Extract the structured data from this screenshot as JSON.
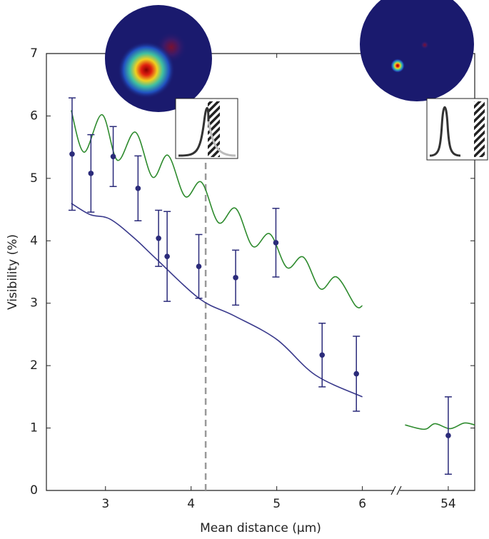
{
  "chart_data": [
    {
      "type": "line",
      "x_label": "Mean distance (μm)",
      "y_label": "Visibility (%)",
      "xlim": [
        2.31,
        6.37
      ],
      "xticks": [
        3,
        4,
        5,
        6
      ],
      "ylim": [
        0,
        7
      ],
      "yticks": [
        0,
        1,
        2,
        3,
        4,
        5,
        6,
        7
      ],
      "vline": 4.17,
      "series": [
        {
          "type": "line",
          "color": "#2e8b2e",
          "x": [
            2.6,
            2.75,
            2.96,
            3.14,
            3.35,
            3.55,
            3.73,
            3.93,
            4.12,
            4.32,
            4.52,
            4.72,
            4.92,
            5.12,
            5.31,
            5.51,
            5.7,
            5.92,
            6.0
          ],
          "values": [
            6.09,
            5.42,
            6.02,
            5.29,
            5.74,
            5.02,
            5.37,
            4.71,
            4.94,
            4.29,
            4.52,
            3.91,
            4.11,
            3.57,
            3.74,
            3.23,
            3.42,
            2.96,
            2.96
          ]
        },
        {
          "type": "line",
          "color": "#3a3a8c",
          "x": [
            2.6,
            2.82,
            3.05,
            3.33,
            3.6,
            4.1,
            4.5,
            5.0,
            5.45,
            6.0
          ],
          "values": [
            4.6,
            4.42,
            4.35,
            4.05,
            3.7,
            3.07,
            2.8,
            2.42,
            1.85,
            1.5
          ]
        },
        {
          "type": "errorbar",
          "color": "#2b2b7a",
          "x": [
            2.61,
            2.83,
            3.09,
            3.38,
            3.62,
            3.72,
            4.09,
            4.52,
            4.99,
            5.53,
            5.93
          ],
          "values": [
            5.39,
            5.08,
            5.35,
            4.84,
            4.04,
            3.75,
            3.59,
            3.41,
            3.97,
            2.17,
            1.87
          ],
          "errors": [
            0.9,
            0.62,
            0.48,
            0.52,
            0.45,
            0.72,
            0.51,
            0.44,
            0.55,
            0.51,
            0.6
          ]
        }
      ]
    },
    {
      "type": "line",
      "xlim": [
        53.45,
        54.3
      ],
      "xticks": [
        54
      ],
      "ylim": [
        0,
        7
      ],
      "series": [
        {
          "type": "line",
          "color": "#2e8b2e",
          "x": [
            53.51,
            53.73,
            53.85,
            54.02,
            54.18,
            54.3
          ],
          "values": [
            1.05,
            0.98,
            1.07,
            0.99,
            1.08,
            1.05
          ]
        },
        {
          "type": "errorbar",
          "color": "#2b2b7a",
          "x": [
            54
          ],
          "values": [
            0.88
          ],
          "errors": [
            0.62
          ]
        }
      ]
    }
  ]
}
